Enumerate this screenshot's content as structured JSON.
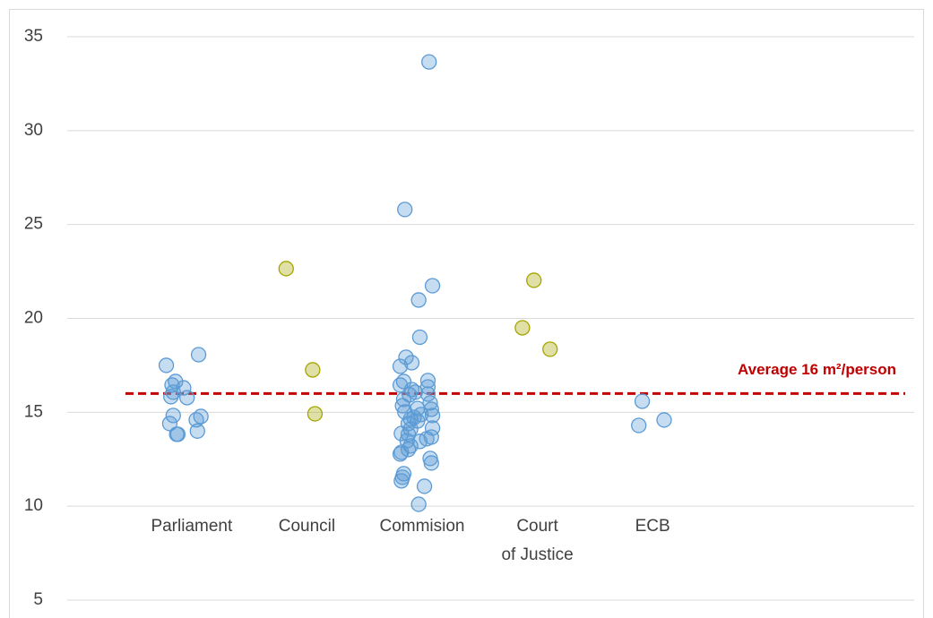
{
  "chart_data": {
    "type": "scatter",
    "xlim": [
      -0.08,
      7.27
    ],
    "xticks": [
      {
        "value": 1,
        "label": "Parliament"
      },
      {
        "value": 2,
        "label": "Council"
      },
      {
        "value": 3,
        "label": "Commision"
      },
      {
        "value": 4,
        "label": "Court\nof Justice"
      },
      {
        "value": 5,
        "label": "ECB"
      }
    ],
    "ylim": [
      5,
      35
    ],
    "yticks": [
      5,
      10,
      15,
      20,
      25,
      30,
      35
    ],
    "grid": true,
    "series": [
      {
        "color": "#5b9bd5",
        "x": [
          0.78,
          1.06,
          0.86,
          0.83,
          0.93,
          0.84,
          0.82,
          0.96,
          0.84,
          1.08,
          1.04,
          0.81,
          1.05,
          0.87,
          0.88
        ],
        "values": [
          17.5,
          18.07,
          16.64,
          16.45,
          16.3,
          16.07,
          15.83,
          15.78,
          14.83,
          14.78,
          14.6,
          14.4,
          14.0,
          13.83,
          13.83
        ]
      },
      {
        "color": "#a5a500",
        "x": [
          1.82,
          2.05,
          2.07
        ],
        "values": [
          22.65,
          17.26,
          14.92
        ]
      },
      {
        "color": "#5b9bd5",
        "x": [
          3.06,
          2.85,
          3.09,
          2.97,
          2.98,
          2.86,
          2.91,
          2.81,
          3.05,
          2.84,
          2.81,
          3.05,
          2.91,
          2.94,
          3.05,
          2.89,
          2.84,
          3.07,
          2.83,
          2.96,
          3.08,
          2.85,
          2.99,
          3.09,
          2.93,
          2.9,
          2.96,
          2.88,
          3.09,
          2.9,
          2.88,
          3.08,
          2.82,
          3.04,
          2.98,
          2.87,
          2.9,
          2.88,
          2.82,
          2.81,
          3.07,
          3.08,
          2.84,
          2.83,
          3.02,
          2.82,
          2.97
        ],
        "values": [
          33.66,
          25.8,
          21.74,
          20.98,
          19.0,
          17.93,
          17.64,
          17.45,
          16.69,
          16.64,
          16.45,
          16.35,
          16.21,
          16.07,
          15.97,
          15.93,
          15.69,
          15.5,
          15.35,
          15.2,
          15.16,
          15.02,
          14.88,
          14.83,
          14.73,
          14.64,
          14.54,
          14.4,
          14.16,
          14.11,
          13.83,
          13.68,
          13.87,
          13.59,
          13.45,
          13.49,
          13.21,
          13.02,
          12.87,
          12.78,
          12.54,
          12.3,
          11.73,
          11.54,
          11.06,
          11.35,
          10.1
        ]
      },
      {
        "color": "#a5a500",
        "x": [
          3.97,
          3.87,
          4.11
        ],
        "values": [
          22.03,
          19.5,
          18.36
        ]
      },
      {
        "color": "#5b9bd5",
        "x": [
          4.91,
          5.1,
          4.88
        ],
        "values": [
          15.59,
          14.59,
          14.3
        ]
      }
    ],
    "reference_line": {
      "value": 16,
      "label": "Average 16 m²/person",
      "color": "#c00000"
    }
  }
}
